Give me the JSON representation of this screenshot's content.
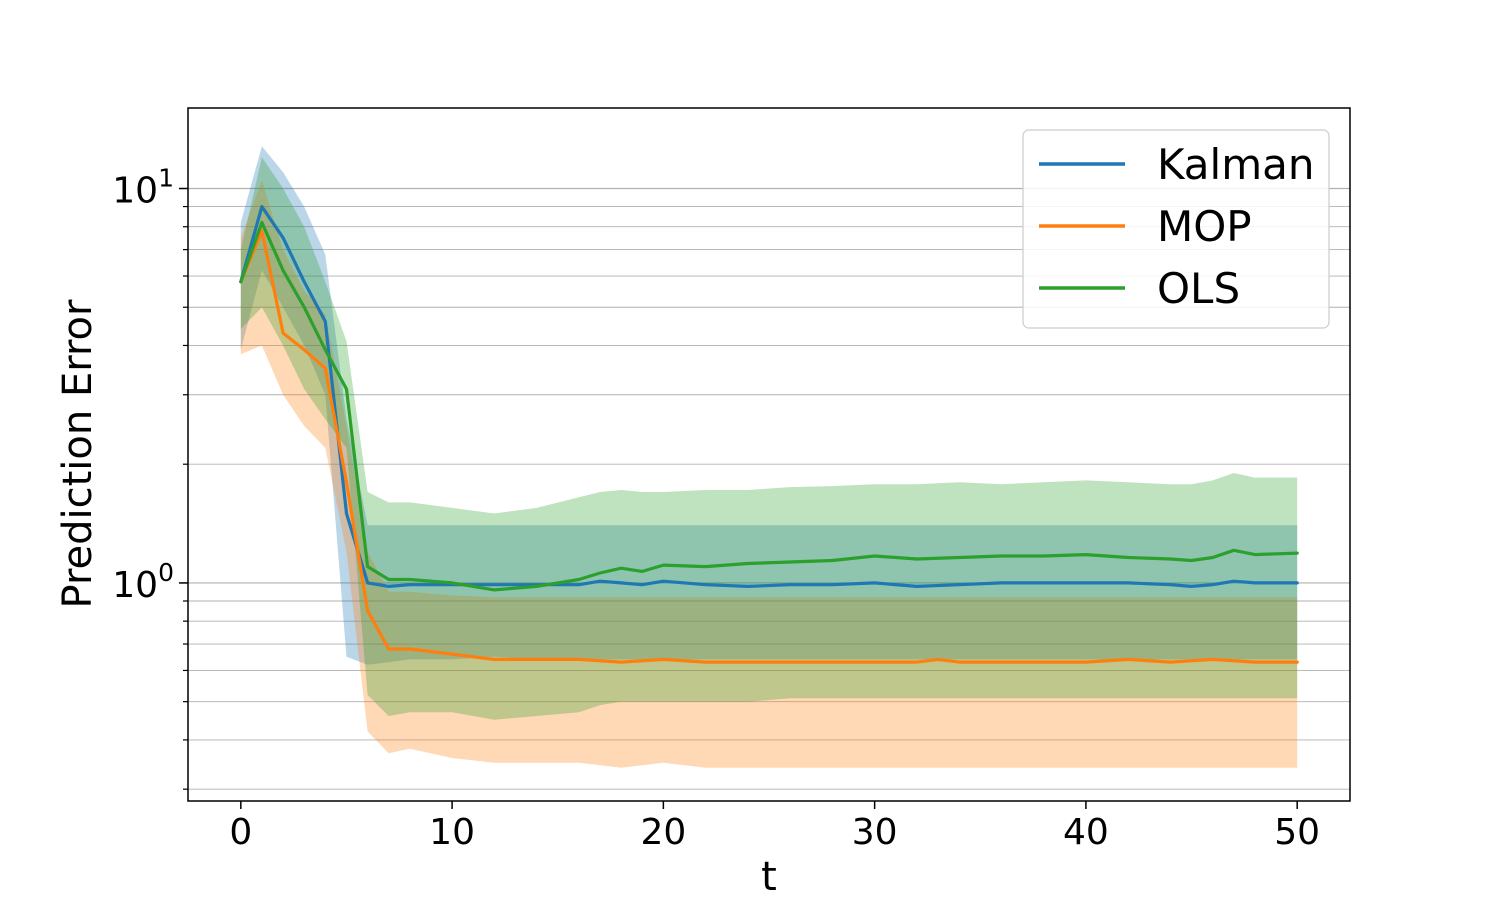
{
  "chart_data": {
    "type": "line",
    "xlabel": "t",
    "ylabel": "Prediction Error",
    "yscale": "log",
    "xlim": [
      -2.5,
      52.5
    ],
    "ylim": [
      0.28,
      16
    ],
    "x_ticks": [
      0,
      10,
      20,
      30,
      40,
      50
    ],
    "x_tick_labels": [
      "0",
      "10",
      "20",
      "30",
      "40",
      "50"
    ],
    "y_ticks": [
      {
        "value": 1,
        "base": "10",
        "exp": "0"
      },
      {
        "value": 10,
        "base": "10",
        "exp": "1"
      }
    ],
    "grid": "y-major-and-minor",
    "legend": {
      "position": "top-right",
      "entries": [
        "Kalman",
        "MOP",
        "OLS"
      ]
    },
    "series": [
      {
        "name": "Kalman",
        "color": "#1f77b4",
        "x": [
          0,
          1,
          2,
          3,
          4,
          5,
          6,
          7,
          8,
          10,
          12,
          14,
          16,
          17,
          18,
          19,
          20,
          22,
          24,
          26,
          28,
          30,
          32,
          34,
          36,
          38,
          40,
          42,
          44,
          45,
          46,
          47,
          48,
          50
        ],
        "y": [
          5.8,
          9.0,
          7.5,
          5.8,
          4.6,
          1.5,
          1.0,
          0.98,
          0.99,
          0.99,
          0.99,
          0.99,
          0.99,
          1.01,
          1.0,
          0.99,
          1.01,
          0.99,
          0.98,
          0.99,
          0.99,
          1.0,
          0.98,
          0.99,
          1.0,
          1.0,
          1.0,
          1.0,
          0.99,
          0.98,
          0.99,
          1.01,
          1.0,
          1.0
        ],
        "upper": [
          8.2,
          12.8,
          11.0,
          9.0,
          6.8,
          2.6,
          1.4,
          1.4,
          1.4,
          1.4,
          1.4,
          1.4,
          1.4,
          1.4,
          1.4,
          1.4,
          1.4,
          1.4,
          1.4,
          1.4,
          1.4,
          1.4,
          1.4,
          1.4,
          1.4,
          1.4,
          1.4,
          1.4,
          1.4,
          1.4,
          1.4,
          1.4,
          1.4,
          1.4
        ],
        "lower": [
          3.9,
          6.2,
          5.0,
          4.0,
          3.0,
          0.65,
          0.62,
          0.63,
          0.64,
          0.64,
          0.65,
          0.64,
          0.64,
          0.64,
          0.64,
          0.64,
          0.64,
          0.64,
          0.64,
          0.64,
          0.64,
          0.64,
          0.64,
          0.64,
          0.64,
          0.64,
          0.64,
          0.64,
          0.64,
          0.64,
          0.64,
          0.64,
          0.64,
          0.64
        ]
      },
      {
        "name": "MOP",
        "color": "#ff7f0e",
        "x": [
          0,
          1,
          2,
          3,
          4,
          5,
          6,
          7,
          8,
          10,
          12,
          14,
          16,
          18,
          20,
          22,
          24,
          26,
          28,
          30,
          32,
          33,
          34,
          36,
          38,
          40,
          42,
          44,
          46,
          48,
          50
        ],
        "y": [
          5.8,
          7.8,
          4.3,
          3.9,
          3.5,
          1.8,
          0.85,
          0.68,
          0.68,
          0.66,
          0.64,
          0.64,
          0.64,
          0.63,
          0.64,
          0.63,
          0.63,
          0.63,
          0.63,
          0.63,
          0.63,
          0.64,
          0.63,
          0.63,
          0.63,
          0.63,
          0.64,
          0.63,
          0.64,
          0.63,
          0.63
        ],
        "upper": [
          7.5,
          10.5,
          7.0,
          5.5,
          4.8,
          2.5,
          1.2,
          0.95,
          0.95,
          0.93,
          0.92,
          0.92,
          0.92,
          0.92,
          0.92,
          0.92,
          0.92,
          0.92,
          0.92,
          0.92,
          0.92,
          0.92,
          0.92,
          0.92,
          0.92,
          0.92,
          0.92,
          0.92,
          0.92,
          0.92,
          0.92
        ],
        "lower": [
          3.8,
          4.0,
          3.0,
          2.5,
          2.2,
          1.2,
          0.42,
          0.37,
          0.38,
          0.36,
          0.35,
          0.35,
          0.35,
          0.34,
          0.35,
          0.34,
          0.34,
          0.34,
          0.34,
          0.34,
          0.34,
          0.34,
          0.34,
          0.34,
          0.34,
          0.34,
          0.34,
          0.34,
          0.34,
          0.34,
          0.34
        ]
      },
      {
        "name": "OLS",
        "color": "#2ca02c",
        "x": [
          0,
          1,
          2,
          3,
          4,
          5,
          6,
          7,
          8,
          10,
          12,
          14,
          16,
          17,
          18,
          19,
          20,
          22,
          24,
          26,
          28,
          30,
          32,
          34,
          36,
          38,
          40,
          42,
          44,
          45,
          46,
          47,
          48,
          50
        ],
        "y": [
          5.8,
          8.2,
          6.2,
          5.0,
          3.9,
          3.1,
          1.1,
          1.02,
          1.02,
          1.0,
          0.96,
          0.98,
          1.02,
          1.06,
          1.09,
          1.07,
          1.11,
          1.1,
          1.12,
          1.13,
          1.14,
          1.17,
          1.15,
          1.16,
          1.17,
          1.17,
          1.18,
          1.16,
          1.15,
          1.14,
          1.16,
          1.21,
          1.18,
          1.19
        ],
        "upper": [
          7.0,
          12.0,
          10.0,
          8.0,
          5.8,
          4.1,
          1.7,
          1.6,
          1.6,
          1.55,
          1.5,
          1.55,
          1.65,
          1.7,
          1.72,
          1.7,
          1.7,
          1.72,
          1.72,
          1.75,
          1.76,
          1.78,
          1.78,
          1.8,
          1.78,
          1.8,
          1.82,
          1.8,
          1.78,
          1.78,
          1.82,
          1.9,
          1.85,
          1.85
        ],
        "lower": [
          4.4,
          5.0,
          4.0,
          3.1,
          2.6,
          2.2,
          0.52,
          0.46,
          0.47,
          0.47,
          0.45,
          0.46,
          0.47,
          0.49,
          0.5,
          0.5,
          0.5,
          0.5,
          0.5,
          0.51,
          0.51,
          0.51,
          0.51,
          0.51,
          0.51,
          0.51,
          0.51,
          0.51,
          0.51,
          0.51,
          0.51,
          0.51,
          0.51,
          0.51
        ]
      }
    ]
  }
}
